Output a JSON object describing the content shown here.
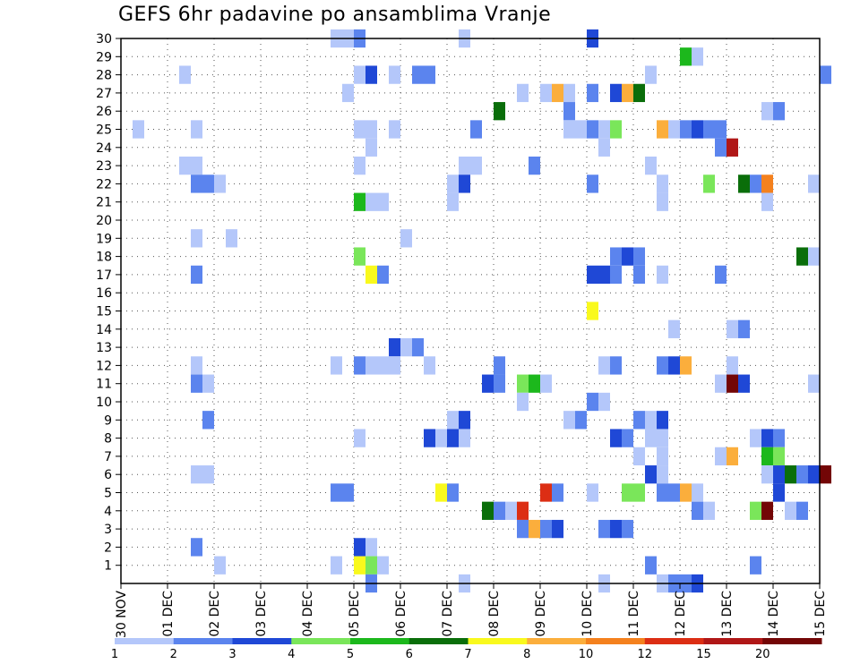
{
  "chart_data": {
    "type": "heatmap",
    "title": "GEFS 6hr padavine po ansamblima Vranje",
    "xlabel": "",
    "ylabel": "",
    "y_ticks": [
      "1",
      "2",
      "3",
      "4",
      "5",
      "6",
      "7",
      "8",
      "9",
      "10",
      "11",
      "12",
      "13",
      "14",
      "15",
      "16",
      "17",
      "18",
      "19",
      "20",
      "21",
      "22",
      "23",
      "24",
      "25",
      "26",
      "27",
      "28",
      "29",
      "30"
    ],
    "x_ticks": [
      "30 NOV",
      "01 DEC",
      "02 DEC",
      "03 DEC",
      "04 DEC",
      "05 DEC",
      "06 DEC",
      "07 DEC",
      "08 DEC",
      "09 DEC",
      "10 DEC",
      "11 DEC",
      "12 DEC",
      "13 DEC",
      "14 DEC",
      "15 DEC"
    ],
    "x_range": [
      0,
      15
    ],
    "y_range": [
      0,
      30
    ],
    "time_step_days": 0.25,
    "grid": true,
    "legend_labels": [
      "1",
      "2",
      "3",
      "4",
      "5",
      "6",
      "7",
      "8",
      "10",
      "12",
      "15",
      "20"
    ],
    "colors": [
      "#b4c7fa",
      "#5b84ee",
      "#1f48d6",
      "#7ae65a",
      "#1cb81c",
      "#0a6e0a",
      "#f9f91d",
      "#fbae3c",
      "#f4811e",
      "#dc2e14",
      "#b01717",
      "#730606"
    ],
    "cells": [
      [
        30,
        4.5,
        0
      ],
      [
        30,
        4.75,
        0
      ],
      [
        30,
        5.0,
        1
      ],
      [
        30,
        7.25,
        0
      ],
      [
        30,
        10.0,
        2
      ],
      [
        29,
        12.0,
        4
      ],
      [
        29,
        12.25,
        0
      ],
      [
        28,
        1.25,
        0
      ],
      [
        28,
        5.0,
        0
      ],
      [
        28,
        5.25,
        2
      ],
      [
        28,
        5.75,
        0
      ],
      [
        28,
        6.25,
        1
      ],
      [
        28,
        6.5,
        1
      ],
      [
        28,
        11.25,
        0
      ],
      [
        28,
        15.0,
        1
      ],
      [
        27,
        4.75,
        0
      ],
      [
        27,
        8.5,
        0
      ],
      [
        27,
        9.0,
        0
      ],
      [
        27,
        9.25,
        7
      ],
      [
        27,
        9.5,
        0
      ],
      [
        27,
        10.0,
        1
      ],
      [
        27,
        10.5,
        2
      ],
      [
        27,
        10.75,
        7
      ],
      [
        27,
        11.0,
        5
      ],
      [
        26,
        8.0,
        5
      ],
      [
        26,
        9.5,
        1
      ],
      [
        26,
        13.75,
        0
      ],
      [
        26,
        14.0,
        1
      ],
      [
        25,
        0.25,
        0
      ],
      [
        25,
        1.5,
        0
      ],
      [
        25,
        5.0,
        0
      ],
      [
        25,
        5.25,
        0
      ],
      [
        25,
        5.75,
        0
      ],
      [
        25,
        7.5,
        1
      ],
      [
        25,
        9.5,
        0
      ],
      [
        25,
        9.75,
        0
      ],
      [
        25,
        10.0,
        1
      ],
      [
        25,
        10.25,
        0
      ],
      [
        25,
        10.5,
        3
      ],
      [
        25,
        11.5,
        7
      ],
      [
        25,
        11.75,
        0
      ],
      [
        25,
        12.0,
        1
      ],
      [
        25,
        12.25,
        2
      ],
      [
        25,
        12.5,
        1
      ],
      [
        25,
        12.75,
        1
      ],
      [
        24,
        5.25,
        0
      ],
      [
        24,
        10.25,
        0
      ],
      [
        24,
        12.75,
        1
      ],
      [
        24,
        13.0,
        10
      ],
      [
        23,
        1.25,
        0
      ],
      [
        23,
        1.5,
        0
      ],
      [
        23,
        5.0,
        0
      ],
      [
        23,
        7.25,
        0
      ],
      [
        23,
        7.5,
        0
      ],
      [
        23,
        8.75,
        1
      ],
      [
        23,
        11.25,
        0
      ],
      [
        22,
        1.5,
        1
      ],
      [
        22,
        1.75,
        1
      ],
      [
        22,
        2.0,
        0
      ],
      [
        22,
        7.0,
        0
      ],
      [
        22,
        7.25,
        2
      ],
      [
        22,
        10.0,
        1
      ],
      [
        22,
        11.5,
        0
      ],
      [
        22,
        12.5,
        3
      ],
      [
        22,
        13.25,
        5
      ],
      [
        22,
        13.5,
        1
      ],
      [
        22,
        13.75,
        8
      ],
      [
        22,
        14.75,
        0
      ],
      [
        21,
        5.0,
        4
      ],
      [
        21,
        5.25,
        0
      ],
      [
        21,
        5.5,
        0
      ],
      [
        21,
        7.0,
        0
      ],
      [
        21,
        11.5,
        0
      ],
      [
        21,
        13.75,
        0
      ],
      [
        19,
        1.5,
        0
      ],
      [
        19,
        2.25,
        0
      ],
      [
        19,
        6.0,
        0
      ],
      [
        18,
        5.0,
        3
      ],
      [
        18,
        10.5,
        1
      ],
      [
        18,
        10.75,
        2
      ],
      [
        18,
        11.0,
        1
      ],
      [
        18,
        14.5,
        5
      ],
      [
        18,
        14.75,
        0
      ],
      [
        17,
        1.5,
        1
      ],
      [
        17,
        5.25,
        6
      ],
      [
        17,
        5.5,
        1
      ],
      [
        17,
        10.0,
        2
      ],
      [
        17,
        10.25,
        2
      ],
      [
        17,
        10.5,
        1
      ],
      [
        17,
        11.0,
        1
      ],
      [
        17,
        11.5,
        0
      ],
      [
        17,
        12.75,
        1
      ],
      [
        15,
        10.0,
        6
      ],
      [
        14,
        11.75,
        0
      ],
      [
        14,
        13.0,
        0
      ],
      [
        14,
        13.25,
        1
      ],
      [
        13,
        5.75,
        2
      ],
      [
        13,
        6.0,
        0
      ],
      [
        13,
        6.25,
        1
      ],
      [
        12,
        1.5,
        0
      ],
      [
        12,
        4.5,
        0
      ],
      [
        12,
        5.0,
        1
      ],
      [
        12,
        5.25,
        0
      ],
      [
        12,
        5.5,
        0
      ],
      [
        12,
        5.75,
        0
      ],
      [
        12,
        6.5,
        0
      ],
      [
        12,
        8.0,
        1
      ],
      [
        12,
        10.25,
        0
      ],
      [
        12,
        10.5,
        1
      ],
      [
        12,
        11.5,
        1
      ],
      [
        12,
        11.75,
        2
      ],
      [
        12,
        12.0,
        7
      ],
      [
        12,
        13.0,
        0
      ],
      [
        11,
        1.5,
        1
      ],
      [
        11,
        1.75,
        0
      ],
      [
        11,
        7.75,
        2
      ],
      [
        11,
        8.0,
        1
      ],
      [
        11,
        8.5,
        3
      ],
      [
        11,
        8.75,
        4
      ],
      [
        11,
        9.0,
        0
      ],
      [
        11,
        12.75,
        0
      ],
      [
        11,
        13.0,
        11
      ],
      [
        11,
        13.25,
        2
      ],
      [
        11,
        14.75,
        0
      ],
      [
        10,
        8.5,
        0
      ],
      [
        10,
        10.0,
        1
      ],
      [
        10,
        10.25,
        0
      ],
      [
        9,
        1.75,
        1
      ],
      [
        9,
        7.0,
        0
      ],
      [
        9,
        7.25,
        2
      ],
      [
        9,
        9.5,
        0
      ],
      [
        9,
        9.75,
        1
      ],
      [
        9,
        11.0,
        1
      ],
      [
        9,
        11.25,
        0
      ],
      [
        9,
        11.5,
        2
      ],
      [
        8,
        5.0,
        0
      ],
      [
        8,
        6.5,
        2
      ],
      [
        8,
        6.75,
        0
      ],
      [
        8,
        7.0,
        2
      ],
      [
        8,
        7.25,
        0
      ],
      [
        8,
        10.5,
        2
      ],
      [
        8,
        10.75,
        1
      ],
      [
        8,
        11.25,
        0
      ],
      [
        8,
        11.5,
        0
      ],
      [
        8,
        13.5,
        0
      ],
      [
        8,
        13.75,
        2
      ],
      [
        8,
        14.0,
        1
      ],
      [
        7,
        11.0,
        0
      ],
      [
        7,
        11.5,
        0
      ],
      [
        7,
        12.75,
        0
      ],
      [
        7,
        13.0,
        7
      ],
      [
        7,
        13.75,
        4
      ],
      [
        7,
        14.0,
        3
      ],
      [
        6,
        1.5,
        0
      ],
      [
        6,
        1.75,
        0
      ],
      [
        6,
        11.25,
        2
      ],
      [
        6,
        11.5,
        0
      ],
      [
        6,
        13.75,
        0
      ],
      [
        6,
        14.0,
        2
      ],
      [
        6,
        14.25,
        5
      ],
      [
        6,
        14.5,
        1
      ],
      [
        6,
        14.75,
        2
      ],
      [
        6,
        15.0,
        11
      ],
      [
        5,
        4.5,
        1
      ],
      [
        5,
        4.75,
        1
      ],
      [
        5,
        6.75,
        6
      ],
      [
        5,
        7.0,
        1
      ],
      [
        5,
        9.0,
        9
      ],
      [
        5,
        9.25,
        1
      ],
      [
        5,
        10.0,
        0
      ],
      [
        5,
        10.75,
        3
      ],
      [
        5,
        11.0,
        3
      ],
      [
        5,
        11.5,
        1
      ],
      [
        5,
        11.75,
        1
      ],
      [
        5,
        12.0,
        7
      ],
      [
        5,
        12.25,
        0
      ],
      [
        5,
        14.0,
        2
      ],
      [
        4,
        7.75,
        5
      ],
      [
        4,
        8.0,
        1
      ],
      [
        4,
        8.25,
        0
      ],
      [
        4,
        8.5,
        9
      ],
      [
        4,
        12.25,
        1
      ],
      [
        4,
        12.5,
        0
      ],
      [
        4,
        13.5,
        3
      ],
      [
        4,
        13.75,
        11
      ],
      [
        4,
        14.25,
        0
      ],
      [
        4,
        14.5,
        1
      ],
      [
        3,
        8.5,
        1
      ],
      [
        3,
        8.75,
        7
      ],
      [
        3,
        9.0,
        1
      ],
      [
        3,
        9.25,
        2
      ],
      [
        3,
        10.25,
        1
      ],
      [
        3,
        10.5,
        2
      ],
      [
        3,
        10.75,
        1
      ],
      [
        2,
        1.5,
        1
      ],
      [
        2,
        5.0,
        2
      ],
      [
        2,
        5.25,
        0
      ],
      [
        1,
        2.0,
        0
      ],
      [
        1,
        4.5,
        0
      ],
      [
        1,
        5.0,
        6
      ],
      [
        1,
        5.25,
        3
      ],
      [
        1,
        5.5,
        0
      ],
      [
        1,
        11.25,
        1
      ],
      [
        1,
        13.5,
        1
      ],
      [
        0,
        5.25,
        1
      ],
      [
        0,
        7.25,
        0
      ],
      [
        0,
        10.25,
        0
      ],
      [
        0,
        11.5,
        0
      ],
      [
        0,
        11.75,
        1
      ],
      [
        0,
        12.0,
        1
      ],
      [
        0,
        12.25,
        2
      ]
    ]
  }
}
